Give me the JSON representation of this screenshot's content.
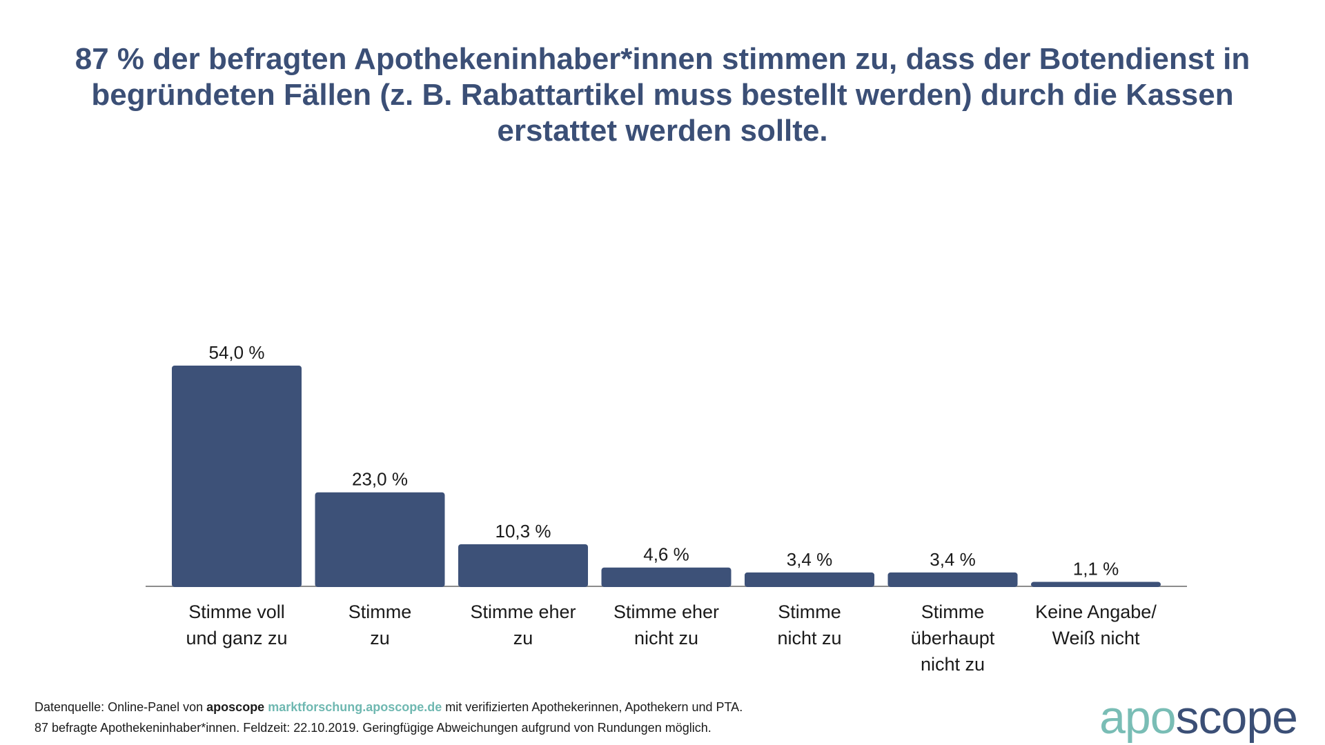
{
  "title": "87 % der befragten Apothekeninhaber*innen stimmen zu, dass der Botendienst in begründeten Fällen (z. B. Rabattartikel muss bestellt werden) durch die Kassen erstattet werden sollte.",
  "colors": {
    "bar": "#3d5178",
    "title": "#3b4f76",
    "axis": "#666666",
    "logo_apo": "#79bdb5",
    "logo_scope": "#3b4f76",
    "link": "#6fb8b1"
  },
  "chart_data": {
    "type": "bar",
    "title": "87 % der befragten Apothekeninhaber*innen stimmen zu, dass der Botendienst in begründeten Fällen (z. B. Rabattartikel muss bestellt werden) durch die Kassen erstattet werden sollte.",
    "categories": [
      [
        "Stimme voll",
        "und ganz zu"
      ],
      [
        "Stimme",
        "zu"
      ],
      [
        "Stimme eher",
        "zu"
      ],
      [
        "Stimme eher",
        "nicht zu"
      ],
      [
        "Stimme",
        "nicht zu"
      ],
      [
        "Stimme",
        "überhaupt",
        "nicht zu"
      ],
      [
        "Keine Angabe/",
        "Weiß nicht"
      ]
    ],
    "values": [
      54.0,
      23.0,
      10.3,
      4.6,
      3.4,
      3.4,
      1.1
    ],
    "value_labels": [
      "54,0 %",
      "23,0 %",
      "10,3 %",
      "4,6 %",
      "3,4 %",
      "3,4 %",
      "1,1 %"
    ],
    "unit": "%",
    "xlabel": "",
    "ylabel": "",
    "grid": false,
    "legend": "none"
  },
  "footer": {
    "line1_prefix": "Datenquelle: Online-Panel von ",
    "line1_brand": "aposcope",
    "line1_link": "marktforschung.aposcope.de",
    "line1_suffix": " mit verifizierten Apothekerinnen, Apothekern und PTA.",
    "line2": "87 befragte Apothekeninhaber*innen. Feldzeit: 22.10.2019. Geringfügige Abweichungen aufgrund von Rundungen möglich."
  },
  "logo": {
    "part1": "apo",
    "part2": "scope"
  }
}
